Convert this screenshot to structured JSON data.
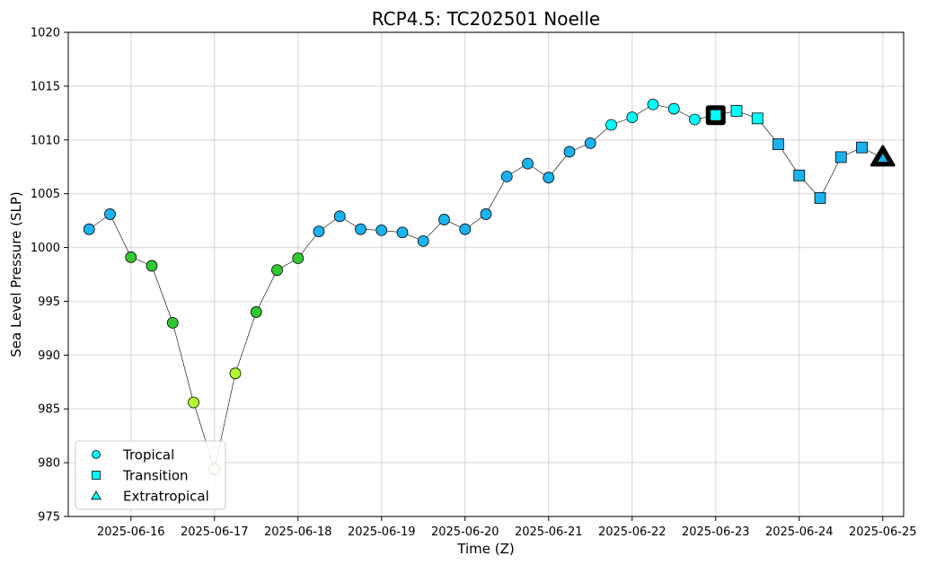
{
  "chart_data": {
    "type": "scatter",
    "title": "RCP4.5: TC202501 Noelle",
    "xlabel": "Time (Z)",
    "ylabel": "Sea Level Pressure (SLP)",
    "ylim": [
      975,
      1020
    ],
    "yticks": [
      975,
      980,
      985,
      990,
      995,
      1000,
      1005,
      1010,
      1015,
      1020
    ],
    "xlim": [
      "2025-06-15T06:00",
      "2025-06-25T06:00"
    ],
    "xticks": [
      "2025-06-16",
      "2025-06-17",
      "2025-06-18",
      "2025-06-19",
      "2025-06-20",
      "2025-06-21",
      "2025-06-22",
      "2025-06-23",
      "2025-06-24",
      "2025-06-25"
    ],
    "grid": true,
    "legend_position": "lower-left",
    "legend": [
      {
        "label": "Tropical",
        "marker": "circle"
      },
      {
        "label": "Transition",
        "marker": "square"
      },
      {
        "label": "Extratropical",
        "marker": "triangle"
      }
    ],
    "colors": {
      "tropical_marker": "#00ffff",
      "line": "#000000",
      "light_blue": "#1ab2f0",
      "green": "#32c832",
      "yellow_green": "#adff2f",
      "pale_yellow": "#ffffcc"
    },
    "points": [
      {
        "t": "2025-06-15T12:00",
        "slp": 1001.7,
        "phase": "Tropical",
        "color": "#1ab2f0"
      },
      {
        "t": "2025-06-15T18:00",
        "slp": 1003.1,
        "phase": "Tropical",
        "color": "#1ab2f0"
      },
      {
        "t": "2025-06-16T00:00",
        "slp": 999.1,
        "phase": "Tropical",
        "color": "#32c832"
      },
      {
        "t": "2025-06-16T06:00",
        "slp": 998.3,
        "phase": "Tropical",
        "color": "#32c832"
      },
      {
        "t": "2025-06-16T12:00",
        "slp": 993.0,
        "phase": "Tropical",
        "color": "#32c832"
      },
      {
        "t": "2025-06-16T18:00",
        "slp": 985.6,
        "phase": "Tropical",
        "color": "#adff2f"
      },
      {
        "t": "2025-06-17T00:00",
        "slp": 979.4,
        "phase": "Tropical",
        "color": "#ffffcc"
      },
      {
        "t": "2025-06-17T06:00",
        "slp": 988.3,
        "phase": "Tropical",
        "color": "#adff2f"
      },
      {
        "t": "2025-06-17T12:00",
        "slp": 994.0,
        "phase": "Tropical",
        "color": "#32c832"
      },
      {
        "t": "2025-06-17T18:00",
        "slp": 997.9,
        "phase": "Tropical",
        "color": "#32c832"
      },
      {
        "t": "2025-06-18T00:00",
        "slp": 999.0,
        "phase": "Tropical",
        "color": "#32c832"
      },
      {
        "t": "2025-06-18T06:00",
        "slp": 1001.5,
        "phase": "Tropical",
        "color": "#1ab2f0"
      },
      {
        "t": "2025-06-18T12:00",
        "slp": 1002.9,
        "phase": "Tropical",
        "color": "#1ab2f0"
      },
      {
        "t": "2025-06-18T18:00",
        "slp": 1001.7,
        "phase": "Tropical",
        "color": "#1ab2f0"
      },
      {
        "t": "2025-06-19T00:00",
        "slp": 1001.6,
        "phase": "Tropical",
        "color": "#1ab2f0"
      },
      {
        "t": "2025-06-19T06:00",
        "slp": 1001.4,
        "phase": "Tropical",
        "color": "#1ab2f0"
      },
      {
        "t": "2025-06-19T12:00",
        "slp": 1000.6,
        "phase": "Tropical",
        "color": "#1ab2f0"
      },
      {
        "t": "2025-06-19T18:00",
        "slp": 1002.6,
        "phase": "Tropical",
        "color": "#1ab2f0"
      },
      {
        "t": "2025-06-20T00:00",
        "slp": 1001.7,
        "phase": "Tropical",
        "color": "#1ab2f0"
      },
      {
        "t": "2025-06-20T06:00",
        "slp": 1003.1,
        "phase": "Tropical",
        "color": "#1ab2f0"
      },
      {
        "t": "2025-06-20T12:00",
        "slp": 1006.6,
        "phase": "Tropical",
        "color": "#1ab2f0"
      },
      {
        "t": "2025-06-20T18:00",
        "slp": 1007.8,
        "phase": "Tropical",
        "color": "#1ab2f0"
      },
      {
        "t": "2025-06-21T00:00",
        "slp": 1006.5,
        "phase": "Tropical",
        "color": "#1ab2f0"
      },
      {
        "t": "2025-06-21T06:00",
        "slp": 1008.9,
        "phase": "Tropical",
        "color": "#1ab2f0"
      },
      {
        "t": "2025-06-21T12:00",
        "slp": 1009.7,
        "phase": "Tropical",
        "color": "#1ab2f0"
      },
      {
        "t": "2025-06-21T18:00",
        "slp": 1011.4,
        "phase": "Tropical",
        "color": "#00ffff"
      },
      {
        "t": "2025-06-22T00:00",
        "slp": 1012.1,
        "phase": "Tropical",
        "color": "#00ffff"
      },
      {
        "t": "2025-06-22T06:00",
        "slp": 1013.3,
        "phase": "Tropical",
        "color": "#00ffff"
      },
      {
        "t": "2025-06-22T12:00",
        "slp": 1012.9,
        "phase": "Tropical",
        "color": "#00ffff"
      },
      {
        "t": "2025-06-22T18:00",
        "slp": 1011.9,
        "phase": "Tropical",
        "color": "#00ffff"
      },
      {
        "t": "2025-06-23T00:00",
        "slp": 1012.3,
        "phase": "Transition",
        "color": "#00ffff",
        "highlight": true
      },
      {
        "t": "2025-06-23T06:00",
        "slp": 1012.7,
        "phase": "Transition",
        "color": "#00ffff"
      },
      {
        "t": "2025-06-23T12:00",
        "slp": 1012.0,
        "phase": "Transition",
        "color": "#00ffff"
      },
      {
        "t": "2025-06-23T18:00",
        "slp": 1009.6,
        "phase": "Transition",
        "color": "#1ab2f0"
      },
      {
        "t": "2025-06-24T00:00",
        "slp": 1006.7,
        "phase": "Transition",
        "color": "#1ab2f0"
      },
      {
        "t": "2025-06-24T06:00",
        "slp": 1004.6,
        "phase": "Transition",
        "color": "#1ab2f0"
      },
      {
        "t": "2025-06-24T12:00",
        "slp": 1008.4,
        "phase": "Transition",
        "color": "#1ab2f0"
      },
      {
        "t": "2025-06-24T18:00",
        "slp": 1009.3,
        "phase": "Transition",
        "color": "#1ab2f0"
      },
      {
        "t": "2025-06-25T00:00",
        "slp": 1008.3,
        "phase": "Extratropical",
        "color": "#1ab2f0",
        "highlight": true
      }
    ]
  }
}
